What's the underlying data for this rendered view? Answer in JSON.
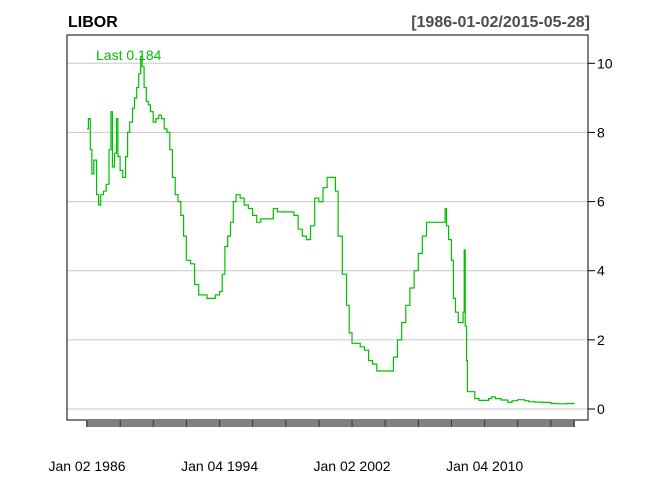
{
  "header": {
    "title": "LIBOR",
    "date_range": "[1986-01-02/2015-05-28]"
  },
  "colors": {
    "series": "#00c000",
    "grid": "#c8c8c8",
    "axis": "#000000",
    "tick_bar": "#808080"
  },
  "chart_data": {
    "type": "line",
    "title": "LIBOR",
    "subtitle": "[1986-01-02/2015-05-28]",
    "xlabel": "",
    "ylabel": "",
    "x_range": [
      "1986-01-02",
      "2015-05-28"
    ],
    "ylim": [
      0,
      10.5
    ],
    "y_ticks": [
      0,
      2,
      4,
      6,
      8,
      10
    ],
    "x_tick_labels": [
      {
        "date": "1986-01-02",
        "label": "Jan 02 1986"
      },
      {
        "date": "1994-01-04",
        "label": "Jan 04 1994"
      },
      {
        "date": "2002-01-02",
        "label": "Jan 02 2002"
      },
      {
        "date": "2010-01-04",
        "label": "Jan 04 2010"
      }
    ],
    "x_minor_ticks": [
      "1986-01-02",
      "1988-01-04",
      "1990-01-02",
      "1992-01-02",
      "1994-01-04",
      "1996-01-02",
      "1998-01-02",
      "2000-01-04",
      "2002-01-02",
      "2004-01-02",
      "2006-01-03",
      "2008-01-02",
      "2010-01-04",
      "2012-01-03",
      "2014-01-02",
      "2015-05-28"
    ],
    "grid": true,
    "last_value_label": "Last 0.184",
    "series": [
      {
        "values": [
          [
            "1986-01-02",
            8.1
          ],
          [
            "1986-02-01",
            8.4
          ],
          [
            "1986-03-15",
            7.5
          ],
          [
            "1986-04-20",
            6.8
          ],
          [
            "1986-06-01",
            7.2
          ],
          [
            "1986-08-01",
            6.2
          ],
          [
            "1986-09-15",
            5.9
          ],
          [
            "1986-11-01",
            6.2
          ],
          [
            "1987-01-01",
            6.3
          ],
          [
            "1987-03-01",
            6.5
          ],
          [
            "1987-05-01",
            7.5
          ],
          [
            "1987-06-15",
            8.6
          ],
          [
            "1987-07-15",
            7.0
          ],
          [
            "1987-09-01",
            7.4
          ],
          [
            "1987-10-15",
            8.4
          ],
          [
            "1987-11-15",
            7.3
          ],
          [
            "1988-01-01",
            6.9
          ],
          [
            "1988-03-01",
            6.7
          ],
          [
            "1988-05-01",
            7.3
          ],
          [
            "1988-06-15",
            8.0
          ],
          [
            "1988-08-01",
            8.3
          ],
          [
            "1988-10-01",
            8.7
          ],
          [
            "1988-11-15",
            9.0
          ],
          [
            "1989-01-01",
            9.3
          ],
          [
            "1989-02-15",
            9.7
          ],
          [
            "1989-04-01",
            10.2
          ],
          [
            "1989-05-01",
            9.9
          ],
          [
            "1989-06-15",
            9.3
          ],
          [
            "1989-08-01",
            8.9
          ],
          [
            "1989-09-15",
            8.8
          ],
          [
            "1989-11-01",
            8.6
          ],
          [
            "1990-01-01",
            8.3
          ],
          [
            "1990-03-01",
            8.4
          ],
          [
            "1990-05-01",
            8.5
          ],
          [
            "1990-07-01",
            8.4
          ],
          [
            "1990-09-01",
            8.1
          ],
          [
            "1990-11-01",
            8.0
          ],
          [
            "1991-01-01",
            7.5
          ],
          [
            "1991-03-01",
            6.7
          ],
          [
            "1991-05-01",
            6.2
          ],
          [
            "1991-07-01",
            6.0
          ],
          [
            "1991-09-01",
            5.6
          ],
          [
            "1991-11-01",
            5.0
          ],
          [
            "1992-01-01",
            4.3
          ],
          [
            "1992-04-01",
            4.2
          ],
          [
            "1992-07-01",
            3.6
          ],
          [
            "1992-10-01",
            3.3
          ],
          [
            "1993-01-01",
            3.3
          ],
          [
            "1993-04-01",
            3.2
          ],
          [
            "1993-07-01",
            3.2
          ],
          [
            "1993-10-01",
            3.3
          ],
          [
            "1994-01-01",
            3.4
          ],
          [
            "1994-03-01",
            3.9
          ],
          [
            "1994-05-01",
            4.7
          ],
          [
            "1994-07-01",
            5.0
          ],
          [
            "1994-09-01",
            5.4
          ],
          [
            "1994-11-01",
            6.0
          ],
          [
            "1995-01-01",
            6.2
          ],
          [
            "1995-04-01",
            6.1
          ],
          [
            "1995-07-01",
            5.9
          ],
          [
            "1995-10-01",
            5.8
          ],
          [
            "1996-01-01",
            5.6
          ],
          [
            "1996-04-01",
            5.4
          ],
          [
            "1996-07-01",
            5.5
          ],
          [
            "1996-10-01",
            5.5
          ],
          [
            "1997-01-01",
            5.5
          ],
          [
            "1997-04-01",
            5.8
          ],
          [
            "1997-07-01",
            5.7
          ],
          [
            "1997-10-01",
            5.7
          ],
          [
            "1998-01-01",
            5.7
          ],
          [
            "1998-04-01",
            5.7
          ],
          [
            "1998-07-01",
            5.6
          ],
          [
            "1998-10-01",
            5.2
          ],
          [
            "1999-01-01",
            5.0
          ],
          [
            "1999-04-01",
            4.9
          ],
          [
            "1999-07-01",
            5.3
          ],
          [
            "1999-10-01",
            6.1
          ],
          [
            "2000-01-01",
            6.0
          ],
          [
            "2000-04-01",
            6.4
          ],
          [
            "2000-07-01",
            6.7
          ],
          [
            "2000-10-01",
            6.7
          ],
          [
            "2001-01-01",
            6.3
          ],
          [
            "2001-03-01",
            5.0
          ],
          [
            "2001-06-01",
            3.9
          ],
          [
            "2001-09-01",
            3.0
          ],
          [
            "2001-11-01",
            2.2
          ],
          [
            "2002-01-01",
            1.9
          ],
          [
            "2002-04-01",
            1.9
          ],
          [
            "2002-07-01",
            1.8
          ],
          [
            "2002-10-01",
            1.7
          ],
          [
            "2003-01-01",
            1.4
          ],
          [
            "2003-04-01",
            1.3
          ],
          [
            "2003-07-01",
            1.1
          ],
          [
            "2003-10-01",
            1.1
          ],
          [
            "2004-01-01",
            1.1
          ],
          [
            "2004-04-01",
            1.1
          ],
          [
            "2004-07-01",
            1.5
          ],
          [
            "2004-10-01",
            2.0
          ],
          [
            "2005-01-01",
            2.5
          ],
          [
            "2005-04-01",
            3.0
          ],
          [
            "2005-07-01",
            3.5
          ],
          [
            "2005-10-01",
            4.0
          ],
          [
            "2006-01-01",
            4.5
          ],
          [
            "2006-04-01",
            5.0
          ],
          [
            "2006-07-01",
            5.4
          ],
          [
            "2006-10-01",
            5.4
          ],
          [
            "2007-01-01",
            5.4
          ],
          [
            "2007-04-01",
            5.4
          ],
          [
            "2007-07-01",
            5.4
          ],
          [
            "2007-08-15",
            5.8
          ],
          [
            "2007-09-15",
            5.3
          ],
          [
            "2007-11-01",
            4.9
          ],
          [
            "2008-01-01",
            4.3
          ],
          [
            "2008-02-15",
            3.2
          ],
          [
            "2008-04-01",
            2.8
          ],
          [
            "2008-06-01",
            2.5
          ],
          [
            "2008-08-01",
            2.5
          ],
          [
            "2008-09-15",
            2.8
          ],
          [
            "2008-10-10",
            4.6
          ],
          [
            "2008-11-01",
            2.4
          ],
          [
            "2008-12-01",
            1.4
          ],
          [
            "2008-12-20",
            0.5
          ],
          [
            "2009-03-01",
            0.5
          ],
          [
            "2009-06-01",
            0.3
          ],
          [
            "2009-09-01",
            0.25
          ],
          [
            "2010-01-01",
            0.25
          ],
          [
            "2010-04-01",
            0.3
          ],
          [
            "2010-06-01",
            0.35
          ],
          [
            "2010-09-01",
            0.3
          ],
          [
            "2011-01-01",
            0.26
          ],
          [
            "2011-06-01",
            0.19
          ],
          [
            "2011-09-01",
            0.24
          ],
          [
            "2012-01-01",
            0.27
          ],
          [
            "2012-06-01",
            0.24
          ],
          [
            "2012-09-01",
            0.21
          ],
          [
            "2013-01-01",
            0.2
          ],
          [
            "2013-06-01",
            0.19
          ],
          [
            "2014-01-01",
            0.16
          ],
          [
            "2014-06-01",
            0.15
          ],
          [
            "2015-01-01",
            0.16
          ],
          [
            "2015-05-28",
            0.184
          ]
        ]
      }
    ]
  }
}
